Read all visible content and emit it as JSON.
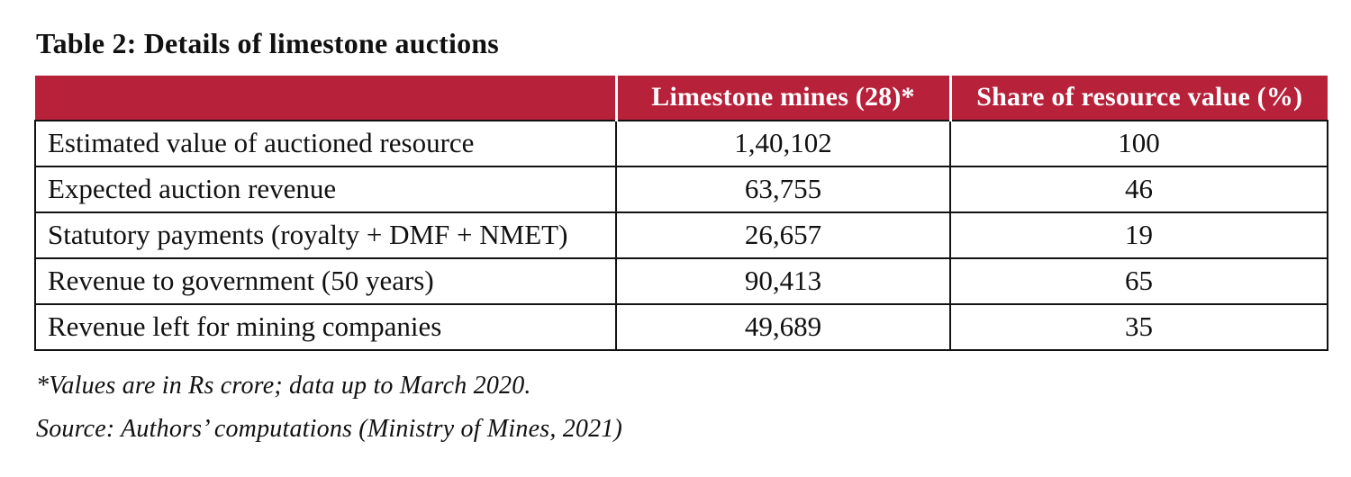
{
  "title": "Table 2: Details of limestone auctions",
  "table": {
    "columns": {
      "label_header": "",
      "mines_header": "Limestone mines (28)*",
      "share_header": "Share of resource value (%)"
    },
    "rows": [
      {
        "label": "Estimated value of auctioned resource",
        "mines": "1,40,102",
        "share": "100"
      },
      {
        "label": "Expected auction revenue",
        "mines": "63,755",
        "share": "46"
      },
      {
        "label": "Statutory payments (royalty + DMF + NMET)",
        "mines": "26,657",
        "share": "19"
      },
      {
        "label": "Revenue to government (50 years)",
        "mines": "90,413",
        "share": "65"
      },
      {
        "label": "Revenue left for mining companies",
        "mines": "49,689",
        "share": "35"
      }
    ]
  },
  "footnotes": {
    "values_note": "*Values are in Rs crore; data up to March 2020.",
    "source_note": "Source: Authors’ computations (Ministry of Mines, 2021)"
  },
  "colors": {
    "header_bg": "#B7213A",
    "header_text": "#FFFFFF",
    "body_border": "#121212",
    "body_text": "#111111"
  }
}
